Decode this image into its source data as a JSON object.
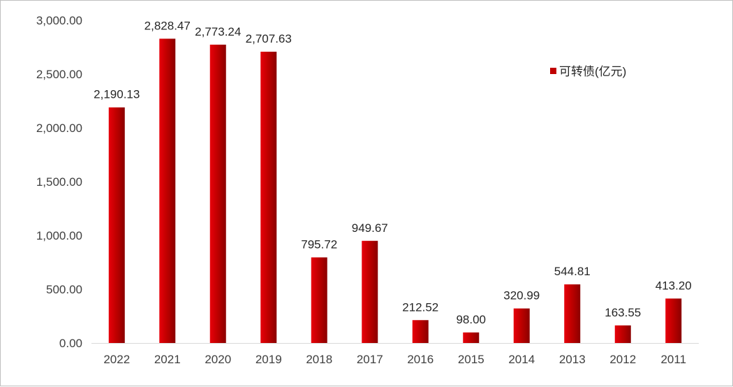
{
  "chart_data": {
    "type": "bar",
    "title": "",
    "xlabel": "",
    "ylabel": "",
    "categories": [
      "2022",
      "2021",
      "2020",
      "2019",
      "2018",
      "2017",
      "2016",
      "2015",
      "2014",
      "2013",
      "2012",
      "2011"
    ],
    "series": [
      {
        "name": "可转债(亿元)",
        "values": [
          2190.13,
          2828.47,
          2773.24,
          2707.63,
          795.72,
          949.67,
          212.52,
          98.0,
          320.99,
          544.81,
          163.55,
          413.2
        ],
        "labels": [
          "2,190.13",
          "2,828.47",
          "2,773.24",
          "2,707.63",
          "795.72",
          "949.67",
          "212.52",
          "98.00",
          "320.99",
          "544.81",
          "163.55",
          "413.20"
        ]
      }
    ],
    "ylim": [
      0,
      3000
    ],
    "yticks": [
      "0.00",
      "500.00",
      "1,000.00",
      "1,500.00",
      "2,000.00",
      "2,500.00",
      "3,000.00"
    ],
    "grid": false,
    "legend_position": "top-right",
    "colors": {
      "bar": "#c00000",
      "bar_light": "#e8000b",
      "bar_dark": "#8b0000"
    }
  }
}
